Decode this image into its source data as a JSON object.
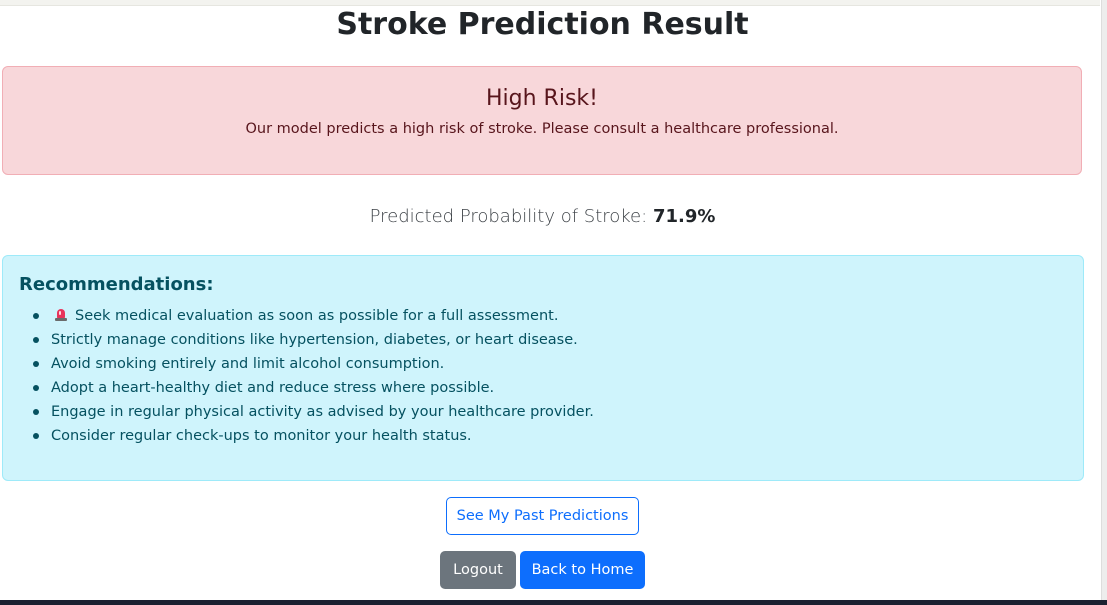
{
  "page": {
    "title": "Stroke Prediction Result"
  },
  "risk_alert": {
    "heading": "High Risk!",
    "message": "Our model predicts a high risk of stroke. Please consult a healthcare professional.",
    "background_color": "#f8d7da",
    "text_color": "#58151c"
  },
  "probability": {
    "label": "Predicted Probability of Stroke:",
    "value": "71.9%"
  },
  "recommendations": {
    "heading": "Recommendations:",
    "background_color": "#cff4fc",
    "text_color": "#055160",
    "items": [
      {
        "icon": "siren-icon",
        "text": "Seek medical evaluation as soon as possible for a full assessment."
      },
      {
        "text": "Strictly manage conditions like hypertension, diabetes, or heart disease."
      },
      {
        "text": "Avoid smoking entirely and limit alcohol consumption."
      },
      {
        "text": "Adopt a heart-healthy diet and reduce stress where possible."
      },
      {
        "text": "Engage in regular physical activity as advised by your healthcare provider."
      },
      {
        "text": "Consider regular check-ups to monitor your health status."
      }
    ]
  },
  "actions": {
    "past_predictions_label": "See My Past Predictions",
    "logout_label": "Logout",
    "home_label": "Back to Home",
    "primary_color": "#0d6efd",
    "secondary_color": "#6c757d"
  }
}
